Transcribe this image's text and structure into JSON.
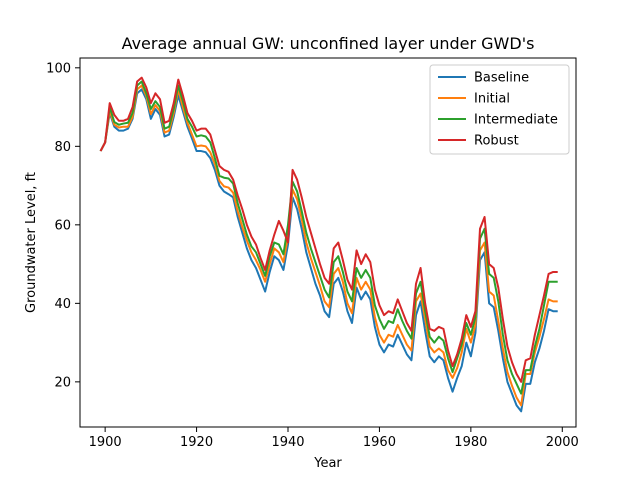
{
  "chart_data": {
    "type": "line",
    "title": "Average annual GW: unconfined layer under GWD's",
    "xlabel": "Year",
    "ylabel": "Groundwater Level, ft",
    "xlim": [
      1894.5,
      2003
    ],
    "ylim": [
      8.5,
      102.5
    ],
    "xticks": [
      1900,
      1920,
      1940,
      1960,
      1980,
      2000
    ],
    "yticks": [
      20,
      40,
      60,
      80,
      100
    ],
    "grid": false,
    "legend_position": "top-right",
    "x": [
      1899,
      1900,
      1901,
      1902,
      1903,
      1904,
      1905,
      1906,
      1907,
      1908,
      1909,
      1910,
      1911,
      1912,
      1913,
      1914,
      1915,
      1916,
      1917,
      1918,
      1919,
      1920,
      1921,
      1922,
      1923,
      1924,
      1925,
      1926,
      1927,
      1928,
      1929,
      1930,
      1931,
      1932,
      1933,
      1934,
      1935,
      1936,
      1937,
      1938,
      1939,
      1940,
      1941,
      1942,
      1943,
      1944,
      1945,
      1946,
      1947,
      1948,
      1949,
      1950,
      1951,
      1952,
      1953,
      1954,
      1955,
      1956,
      1957,
      1958,
      1959,
      1960,
      1961,
      1962,
      1963,
      1964,
      1965,
      1966,
      1967,
      1968,
      1969,
      1970,
      1971,
      1972,
      1973,
      1974,
      1975,
      1976,
      1977,
      1978,
      1979,
      1980,
      1981,
      1982,
      1983,
      1984,
      1985,
      1986,
      1987,
      1988,
      1989,
      1990,
      1991,
      1992,
      1993,
      1994,
      1995,
      1996,
      1997,
      1998,
      1999
    ],
    "series": [
      {
        "name": "Baseline",
        "color": "#1f77b4",
        "values": [
          78.8,
          81.0,
          88.5,
          85.0,
          84.0,
          84.0,
          84.5,
          87.0,
          93.5,
          94.5,
          92.0,
          87.0,
          89.5,
          88.0,
          82.5,
          83.0,
          87.5,
          93.0,
          89.0,
          85.0,
          82.0,
          78.8,
          78.8,
          78.5,
          77.0,
          74.0,
          70.0,
          68.5,
          67.8,
          67.0,
          62.0,
          58.0,
          54.0,
          51.0,
          49.0,
          46.0,
          43.0,
          48.0,
          52.0,
          51.0,
          48.5,
          55.0,
          67.0,
          64.0,
          59.0,
          53.0,
          49.0,
          45.0,
          42.0,
          38.0,
          36.5,
          45.0,
          46.5,
          43.0,
          38.0,
          35.0,
          44.0,
          41.0,
          43.0,
          41.0,
          34.0,
          29.5,
          27.5,
          29.5,
          29.0,
          32.0,
          29.5,
          27.0,
          25.5,
          37.0,
          40.5,
          33.0,
          26.5,
          25.0,
          26.5,
          25.5,
          21.0,
          17.5,
          21.0,
          24.0,
          30.0,
          26.5,
          32.5,
          51.0,
          53.0,
          40.0,
          39.0,
          33.0,
          26.0,
          20.0,
          17.0,
          14.0,
          12.5,
          19.5,
          19.5,
          25.0,
          28.5,
          33.0,
          38.5,
          38.0,
          38.0
        ]
      },
      {
        "name": "Initial",
        "color": "#ff7f0e",
        "values": [
          78.8,
          81.0,
          89.0,
          85.5,
          84.8,
          85.0,
          85.0,
          87.5,
          94.5,
          95.5,
          92.8,
          88.2,
          90.5,
          89.0,
          83.5,
          84.0,
          88.5,
          94.5,
          90.0,
          86.0,
          83.0,
          80.0,
          80.2,
          80.0,
          78.5,
          75.5,
          71.2,
          69.8,
          69.5,
          68.2,
          63.5,
          59.5,
          56.0,
          53.0,
          51.0,
          48.5,
          45.5,
          50.0,
          54.0,
          53.0,
          50.5,
          57.0,
          69.0,
          66.5,
          61.5,
          55.5,
          51.5,
          48.0,
          44.5,
          40.5,
          39.0,
          47.5,
          49.0,
          45.5,
          40.0,
          37.5,
          46.5,
          43.5,
          45.5,
          43.5,
          36.5,
          32.0,
          30.0,
          32.0,
          31.5,
          34.5,
          32.0,
          29.5,
          28.0,
          40.5,
          42.5,
          36.0,
          29.0,
          27.5,
          28.5,
          27.5,
          23.0,
          21.0,
          23.5,
          27.5,
          33.5,
          30.0,
          34.5,
          53.5,
          55.5,
          43.0,
          42.0,
          35.5,
          28.5,
          22.5,
          19.0,
          16.0,
          14.0,
          22.0,
          22.0,
          27.5,
          31.5,
          36.0,
          41.0,
          40.5,
          40.5
        ]
      },
      {
        "name": "Intermediate",
        "color": "#2ca02c",
        "values": [
          78.8,
          81.0,
          90.0,
          86.2,
          85.5,
          85.8,
          86.0,
          88.5,
          95.5,
          96.5,
          93.5,
          89.5,
          91.5,
          90.0,
          84.5,
          85.0,
          89.5,
          95.5,
          91.5,
          87.0,
          85.0,
          82.5,
          82.8,
          82.5,
          81.0,
          77.0,
          72.5,
          72.0,
          71.8,
          70.5,
          65.5,
          61.5,
          57.5,
          54.5,
          53.0,
          50.0,
          47.0,
          52.0,
          55.5,
          55.0,
          52.5,
          60.0,
          71.0,
          68.5,
          63.5,
          58.0,
          54.0,
          50.5,
          47.0,
          43.5,
          41.5,
          50.5,
          52.0,
          48.0,
          43.0,
          40.5,
          49.0,
          46.5,
          48.5,
          46.5,
          39.5,
          36.0,
          33.5,
          35.5,
          35.0,
          38.5,
          35.5,
          33.0,
          31.0,
          42.5,
          45.5,
          38.0,
          31.5,
          30.0,
          31.5,
          30.5,
          26.0,
          22.5,
          26.0,
          29.5,
          35.0,
          32.0,
          36.5,
          56.5,
          59.0,
          47.5,
          46.5,
          40.5,
          32.0,
          25.5,
          22.0,
          19.5,
          17.0,
          23.0,
          23.0,
          29.0,
          33.5,
          39.5,
          45.5,
          45.5,
          45.5
        ]
      },
      {
        "name": "Robust",
        "color": "#d62728",
        "values": [
          78.8,
          81.0,
          91.0,
          88.0,
          86.5,
          86.5,
          87.0,
          90.0,
          96.5,
          97.5,
          95.0,
          91.0,
          93.5,
          92.0,
          86.0,
          86.5,
          91.0,
          97.0,
          93.0,
          88.5,
          86.5,
          84.0,
          84.5,
          84.5,
          83.0,
          79.0,
          75.0,
          74.0,
          73.5,
          71.5,
          67.5,
          64.0,
          60.0,
          57.0,
          55.0,
          51.5,
          48.5,
          53.5,
          57.5,
          61.0,
          58.5,
          55.5,
          74.0,
          71.5,
          67.0,
          62.0,
          58.0,
          54.0,
          50.0,
          46.5,
          45.0,
          54.0,
          55.5,
          51.0,
          46.0,
          43.5,
          53.5,
          50.0,
          52.5,
          50.5,
          43.5,
          39.5,
          37.0,
          38.0,
          37.5,
          41.0,
          38.0,
          35.0,
          33.0,
          45.0,
          49.0,
          40.0,
          33.5,
          33.0,
          34.0,
          33.5,
          28.0,
          24.0,
          27.0,
          31.0,
          37.0,
          34.0,
          38.0,
          59.0,
          62.0,
          50.0,
          49.0,
          44.0,
          36.0,
          29.0,
          25.0,
          22.0,
          20.0,
          25.5,
          26.0,
          32.0,
          37.0,
          42.0,
          47.5,
          48.0,
          48.0
        ]
      }
    ]
  }
}
